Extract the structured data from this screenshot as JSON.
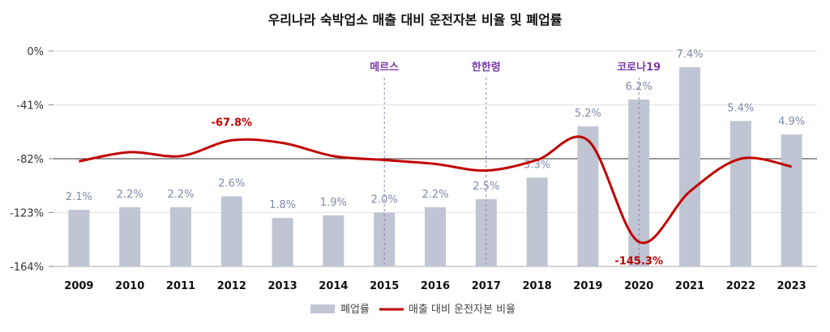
{
  "chart_data": {
    "type": "bar+line",
    "title": "우리나라 숙박업소 매출 대비 운전자본 비율 및 폐업률",
    "categories": [
      "2009",
      "2010",
      "2011",
      "2012",
      "2013",
      "2014",
      "2015",
      "2016",
      "2017",
      "2018",
      "2019",
      "2020",
      "2021",
      "2022",
      "2023"
    ],
    "series": [
      {
        "name": "폐업률",
        "type": "bar",
        "values": [
          2.1,
          2.2,
          2.2,
          2.6,
          1.8,
          1.9,
          2.0,
          2.2,
          2.5,
          3.3,
          5.2,
          6.2,
          7.4,
          5.4,
          4.9
        ],
        "labels": [
          "2.1%",
          "2.2%",
          "2.2%",
          "2.6%",
          "1.8%",
          "1.9%",
          "2.0%",
          "2.2%",
          "2.5%",
          "3.3%",
          "5.2%",
          "6.2%",
          "7.4%",
          "5.4%",
          "4.9%"
        ],
        "color": "#bfc5d2"
      },
      {
        "name": "매출 대비 운전자본 비율",
        "type": "line",
        "values": [
          -84,
          -77,
          -80,
          -68,
          -70,
          -80,
          -83,
          -86,
          -91,
          -83,
          -68,
          -145.3,
          -107,
          -82,
          -88
        ],
        "color": "#c00000"
      }
    ],
    "y_ticks": [
      "0%",
      "-41%",
      "-82%",
      "-123%",
      "-164%"
    ],
    "ylim": [
      -164,
      0
    ],
    "reference_line": -82,
    "annotations": [
      {
        "category": "2015",
        "text": "메르스"
      },
      {
        "category": "2017",
        "text": "한한령"
      },
      {
        "category": "2020",
        "text": "코로나19"
      }
    ],
    "point_labels": [
      {
        "category": "2012",
        "text": "-67.8%"
      },
      {
        "category": "2020",
        "text": "-145.3%"
      }
    ],
    "legend": [
      "폐업률",
      "매출 대비 운전자본 비율"
    ],
    "legend_position": "bottom"
  }
}
